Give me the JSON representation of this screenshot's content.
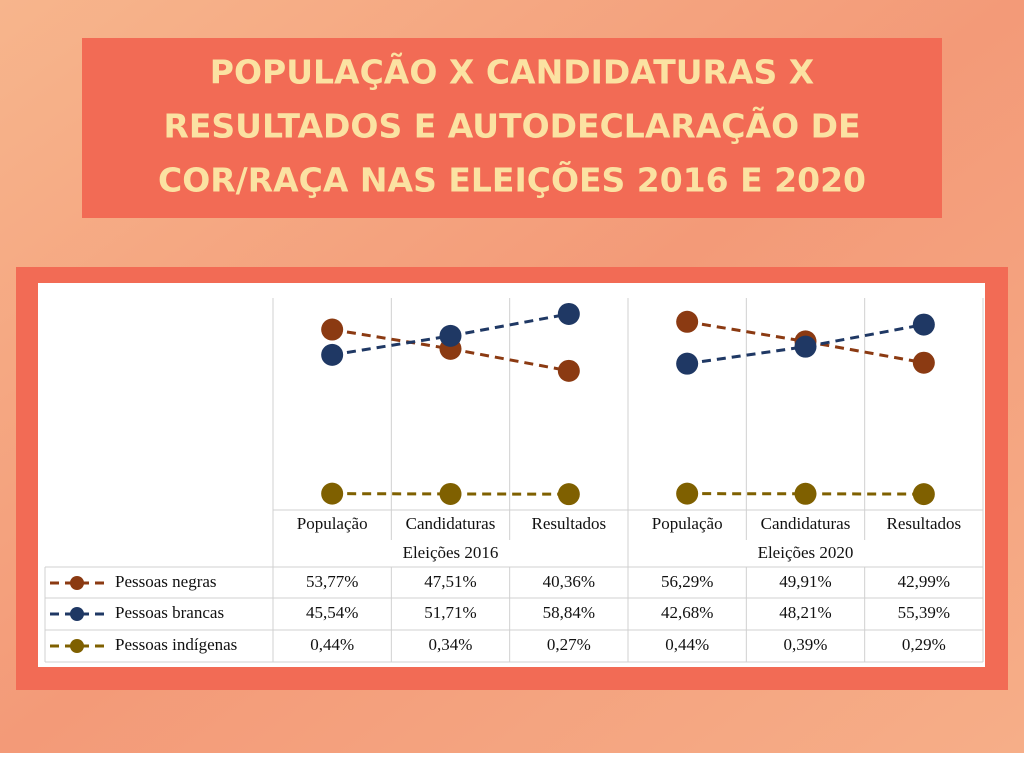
{
  "chart_data": {
    "type": "line",
    "title_lines": [
      "POPULAÇÃO X CANDIDATURAS X",
      "RESULTADOS E AUTODECLARAÇÃO DE",
      "COR/RAÇA NAS ELEIÇÕES 2016 E 2020"
    ],
    "categories": [
      "População",
      "Candidaturas",
      "Resultados",
      "População",
      "Candidaturas",
      "Resultados"
    ],
    "groups": [
      "Eleições 2016",
      "Eleições 2020"
    ],
    "ylim": [
      0,
      65
    ],
    "series": [
      {
        "name": "Pessoas negras",
        "color": "#8b3a12",
        "values": [
          53.77,
          47.51,
          40.36,
          56.29,
          49.91,
          42.99
        ],
        "value_labels": [
          "53,77%",
          "47,51%",
          "40,36%",
          "56,29%",
          "49,91%",
          "42,99%"
        ]
      },
      {
        "name": "Pessoas brancas",
        "color": "#1f3864",
        "values": [
          45.54,
          51.71,
          58.84,
          42.68,
          48.21,
          55.39
        ],
        "value_labels": [
          "45,54%",
          "51,71%",
          "58,84%",
          "42,68%",
          "48,21%",
          "55,39%"
        ]
      },
      {
        "name": "Pessoas indígenas",
        "color": "#7f6000",
        "values": [
          0.44,
          0.34,
          0.27,
          0.44,
          0.39,
          0.29
        ],
        "value_labels": [
          "0,44%",
          "0,34%",
          "0,27%",
          "0,44%",
          "0,39%",
          "0,29%"
        ]
      }
    ]
  }
}
